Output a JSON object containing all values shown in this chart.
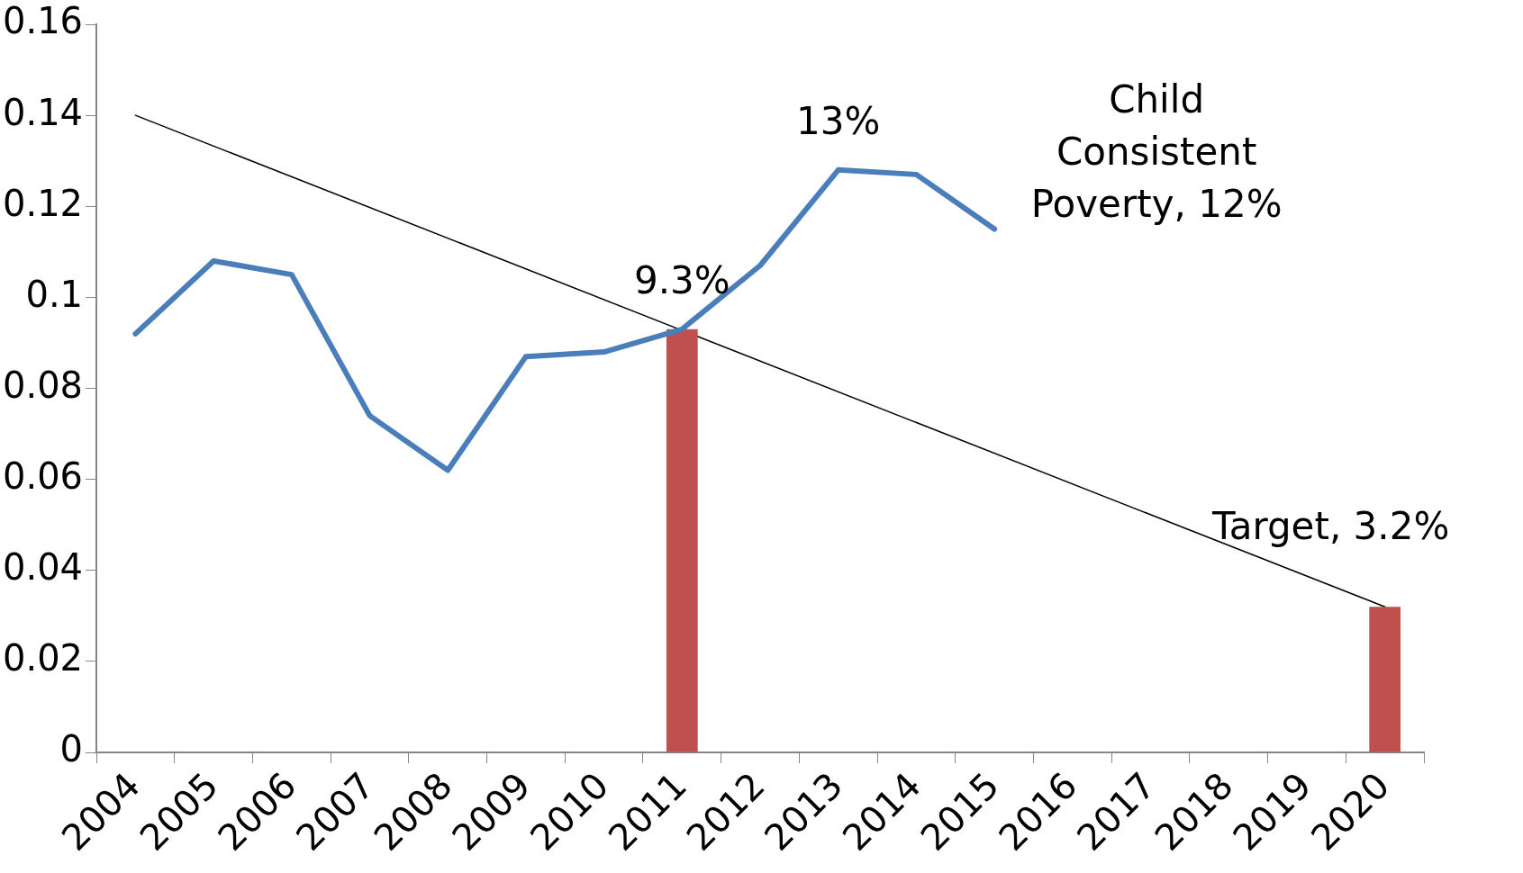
{
  "chart_data": {
    "type": "line",
    "categories": [
      "2004",
      "2005",
      "2006",
      "2007",
      "2008",
      "2009",
      "2010",
      "2011",
      "2012",
      "2013",
      "2014",
      "2015",
      "2016",
      "2017",
      "2018",
      "2019",
      "2020"
    ],
    "series": [
      {
        "color": "#4a7ebb",
        "values": [
          0.092,
          0.108,
          0.105,
          0.074,
          0.062,
          0.087,
          0.088,
          0.093,
          0.107,
          0.128,
          0.127,
          0.115,
          null,
          null,
          null,
          null,
          null
        ]
      },
      {
        "type": "bar",
        "color": "#c0504d",
        "values": [
          null,
          null,
          null,
          null,
          null,
          null,
          null,
          0.093,
          null,
          null,
          null,
          null,
          null,
          null,
          null,
          null,
          0.032
        ]
      },
      {
        "color": "#000000",
        "values": [
          0.14,
          null,
          null,
          null,
          null,
          null,
          null,
          null,
          null,
          null,
          null,
          null,
          null,
          null,
          null,
          null,
          0.032
        ]
      }
    ],
    "ylim": [
      0,
      0.16
    ],
    "yticks": [
      0,
      0.02,
      0.04,
      0.06,
      0.08,
      0.1,
      0.12,
      0.14,
      0.16
    ],
    "grid": false,
    "legend": false,
    "annotations": [
      {
        "text": "13%",
        "x": "2013",
        "y": 0.128
      },
      {
        "text": "9.3%",
        "x": "2011",
        "y": 0.093
      },
      {
        "text": "Child\nConsistent\nPoverty, 12%",
        "x": "2015",
        "y": 0.115
      },
      {
        "text": "Target, 3.2%",
        "x": "2020",
        "y": 0.032
      }
    ]
  }
}
